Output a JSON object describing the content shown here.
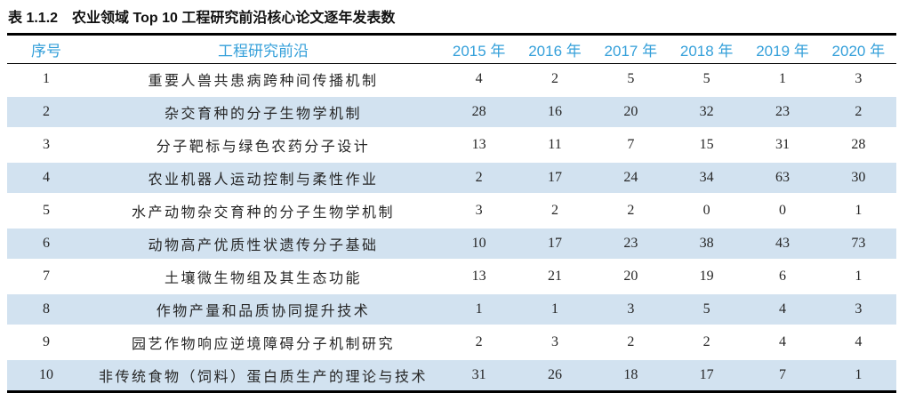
{
  "caption": {
    "label": "表 1.1.2",
    "text": "农业领域 Top 10 工程研究前沿核心论文逐年发表数"
  },
  "table": {
    "columns": [
      {
        "key": "no",
        "label": "序号"
      },
      {
        "key": "front",
        "label": "工程研究前沿"
      },
      {
        "key": "2015",
        "label": "2015 年"
      },
      {
        "key": "2016",
        "label": "2016 年"
      },
      {
        "key": "2017",
        "label": "2017 年"
      },
      {
        "key": "2018",
        "label": "2018 年"
      },
      {
        "key": "2019",
        "label": "2019 年"
      },
      {
        "key": "2020",
        "label": "2020 年"
      }
    ],
    "rows": [
      {
        "no": "1",
        "front": "重要人兽共患病跨种间传播机制",
        "counts": [
          "4",
          "2",
          "5",
          "5",
          "1",
          "3"
        ]
      },
      {
        "no": "2",
        "front": "杂交育种的分子生物学机制",
        "counts": [
          "28",
          "16",
          "20",
          "32",
          "23",
          "2"
        ]
      },
      {
        "no": "3",
        "front": "分子靶标与绿色农药分子设计",
        "counts": [
          "13",
          "11",
          "7",
          "15",
          "31",
          "28"
        ]
      },
      {
        "no": "4",
        "front": "农业机器人运动控制与柔性作业",
        "counts": [
          "2",
          "17",
          "24",
          "34",
          "63",
          "30"
        ]
      },
      {
        "no": "5",
        "front": "水产动物杂交育种的分子生物学机制",
        "counts": [
          "3",
          "2",
          "2",
          "0",
          "0",
          "1"
        ]
      },
      {
        "no": "6",
        "front": "动物高产优质性状遗传分子基础",
        "counts": [
          "10",
          "17",
          "23",
          "38",
          "43",
          "73"
        ]
      },
      {
        "no": "7",
        "front": "土壤微生物组及其生态功能",
        "counts": [
          "13",
          "21",
          "20",
          "19",
          "6",
          "1"
        ]
      },
      {
        "no": "8",
        "front": "作物产量和品质协同提升技术",
        "counts": [
          "1",
          "1",
          "3",
          "5",
          "4",
          "3"
        ]
      },
      {
        "no": "9",
        "front": "园艺作物响应逆境障碍分子机制研究",
        "counts": [
          "2",
          "3",
          "2",
          "2",
          "4",
          "4"
        ]
      },
      {
        "no": "10",
        "front": "非传统食物（饲料）蛋白质生产的理论与技术",
        "counts": [
          "31",
          "26",
          "18",
          "17",
          "7",
          "1"
        ]
      }
    ]
  },
  "colors": {
    "header_text": "#35a0da",
    "row_shade": "#d2e2f0",
    "rule": "#000000",
    "body_text": "#262626"
  }
}
